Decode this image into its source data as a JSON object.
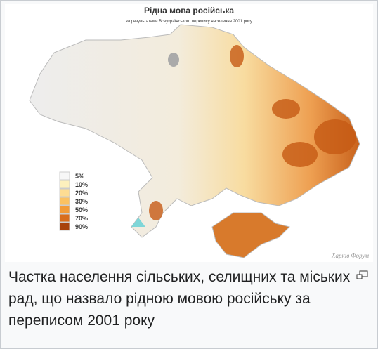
{
  "map": {
    "title": "Рідна мова російська",
    "subtitle": "за результатами Всеукраїнського перепису населення 2001 року",
    "legend": [
      {
        "label": "5%",
        "color": "#f7f7f7"
      },
      {
        "label": "10%",
        "color": "#fdf0bd"
      },
      {
        "label": "20%",
        "color": "#fddc92"
      },
      {
        "label": "30%",
        "color": "#fbc262"
      },
      {
        "label": "50%",
        "color": "#f29b38"
      },
      {
        "label": "70%",
        "color": "#d86d1d"
      },
      {
        "label": "90%",
        "color": "#a8420b"
      }
    ],
    "watermark": "Харків Форум"
  },
  "caption": "Частка населення сільських, селищних та міських рад, що назвало рідною мовою російську за переписом 2001 року"
}
